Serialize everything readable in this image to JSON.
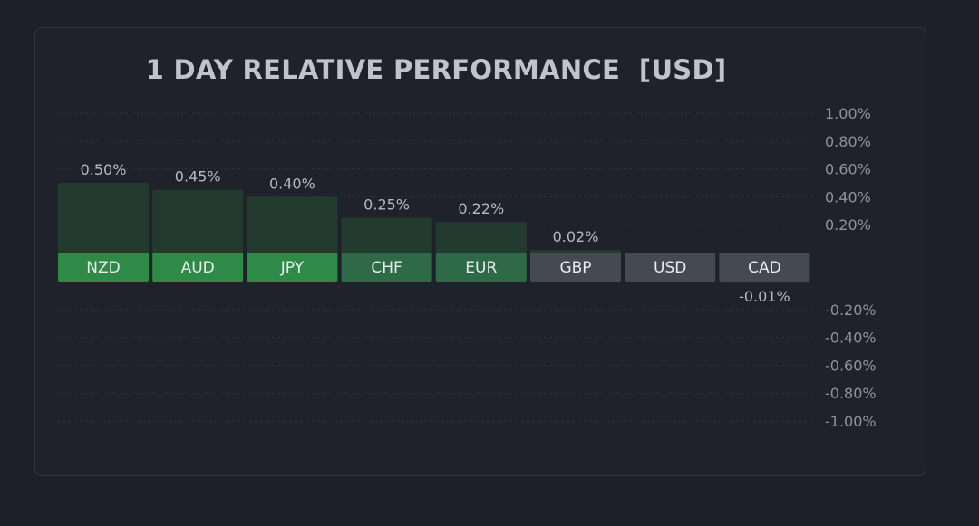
{
  "chart_data": {
    "type": "bar",
    "title": "1 DAY RELATIVE PERFORMANCE  [USD]",
    "categories": [
      "NZD",
      "AUD",
      "JPY",
      "CHF",
      "EUR",
      "GBP",
      "USD",
      "CAD"
    ],
    "values": [
      0.5,
      0.45,
      0.4,
      0.25,
      0.22,
      0.02,
      0.0,
      -0.01
    ],
    "value_labels": [
      "0.50%",
      "0.45%",
      "0.40%",
      "0.25%",
      "0.22%",
      "0.02%",
      "",
      "-0.01%"
    ],
    "ylim": [
      -1.0,
      1.0
    ],
    "yticks": [
      {
        "value": 1.0,
        "label": "1.00%"
      },
      {
        "value": 0.8,
        "label": "0.80%"
      },
      {
        "value": 0.6,
        "label": "0.60%"
      },
      {
        "value": 0.4,
        "label": "0.40%"
      },
      {
        "value": 0.2,
        "label": "0.20%"
      },
      {
        "value": -0.2,
        "label": "-0.20%"
      },
      {
        "value": -0.4,
        "label": "-0.40%"
      },
      {
        "value": -0.6,
        "label": "-0.60%"
      },
      {
        "value": -0.8,
        "label": "-0.80%"
      },
      {
        "value": -1.0,
        "label": "-1.00%"
      }
    ],
    "grid": true,
    "colors": {
      "label_box": [
        "#2f8a47",
        "#2f8a47",
        "#2f8a47",
        "#2f6a48",
        "#2f6a48",
        "#454954",
        "#454954",
        "#454954"
      ],
      "bar_fill": "#233a2e"
    }
  }
}
